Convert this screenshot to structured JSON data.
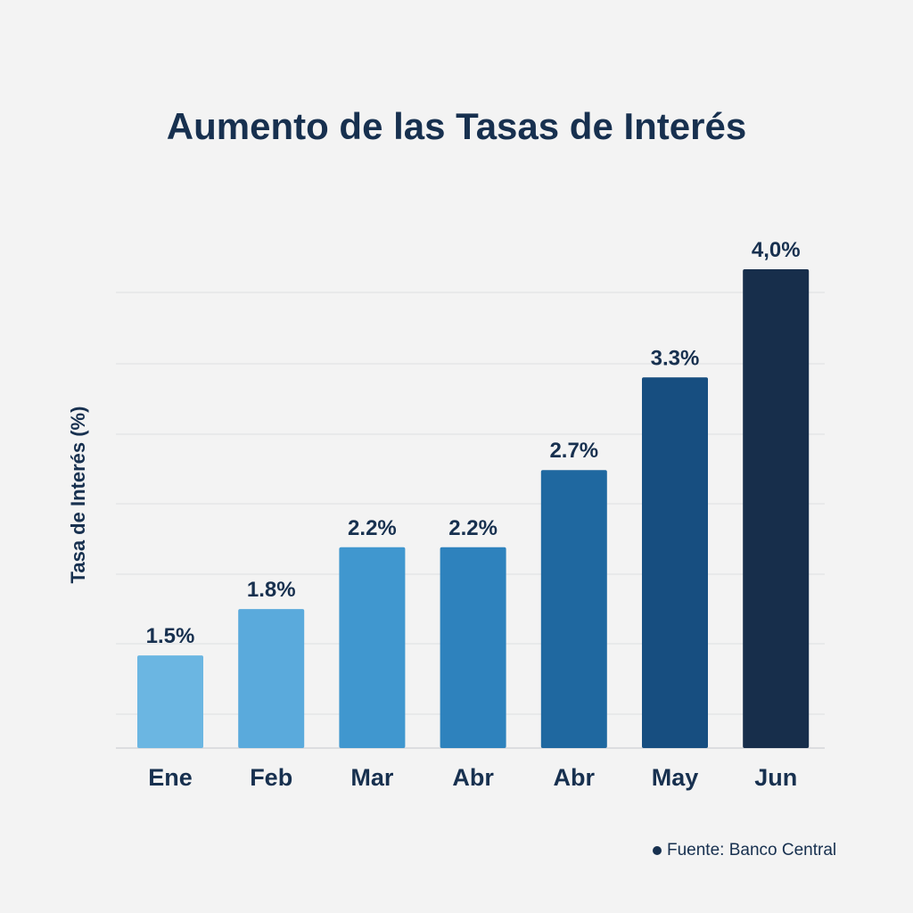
{
  "chart_data": {
    "type": "bar",
    "title": "Aumento de las Tasas de Interés",
    "ylabel": "Tasa de Interés (%)",
    "xlabel": "",
    "categories": [
      "Ene",
      "Feb",
      "Mar",
      "Abr",
      "Abr",
      "May",
      "Jun"
    ],
    "values": [
      1.5,
      1.8,
      2.2,
      2.2,
      2.7,
      3.3,
      4.0
    ],
    "data_labels": [
      "1.5%",
      "1.8%",
      "2.2%",
      "2.2%",
      "2.7%",
      "3.3%",
      "4,0%"
    ],
    "colors": [
      "#6bb6e2",
      "#5aaadc",
      "#4097cf",
      "#2e82bd",
      "#1f68a0",
      "#174e80",
      "#172e4b"
    ],
    "grid": true,
    "legend": "none",
    "ylim": [
      0.9,
      4.0
    ]
  },
  "source": "Fuente: Banco Central"
}
